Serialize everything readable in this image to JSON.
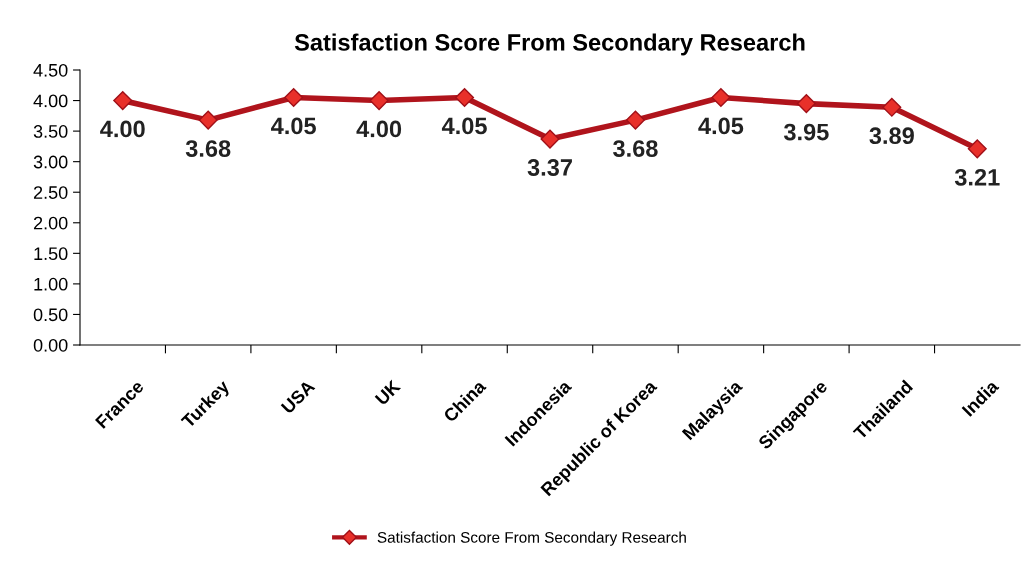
{
  "chart_data": {
    "type": "line",
    "title": "Satisfaction Score From Secondary Research",
    "categories": [
      "France",
      "Turkey",
      "USA",
      "UK",
      "China",
      "Indonesia",
      "Republic of Korea",
      "Malaysia",
      "Singapore",
      "Thailand",
      "India"
    ],
    "series": [
      {
        "name": "Satisfaction Score From Secondary Research",
        "color": "#b0141c",
        "values": [
          4.0,
          3.68,
          4.05,
          4.0,
          4.05,
          3.37,
          3.68,
          4.05,
          3.95,
          3.89,
          3.21
        ],
        "value_labels": [
          "4.00",
          "3.68",
          "4.05",
          "4.00",
          "4.05",
          "3.37",
          "3.68",
          "4.05",
          "3.95",
          "3.89",
          "3.21"
        ]
      }
    ],
    "ylim": [
      0,
      4.5
    ],
    "yticks": [
      {
        "value": 0,
        "label": "0.00"
      },
      {
        "value": 0.5,
        "label": "0.50"
      },
      {
        "value": 1,
        "label": "1.00"
      },
      {
        "value": 1.5,
        "label": "1.50"
      },
      {
        "value": 2,
        "label": "2.00"
      },
      {
        "value": 2.5,
        "label": "2.50"
      },
      {
        "value": 3,
        "label": "3.00"
      },
      {
        "value": 3.5,
        "label": "3.50"
      },
      {
        "value": 4,
        "label": "4.00"
      },
      {
        "value": 4.5,
        "label": "4.50"
      }
    ],
    "marker": "diamond",
    "line_style": "solid",
    "grid": false,
    "legend": "bottom"
  }
}
